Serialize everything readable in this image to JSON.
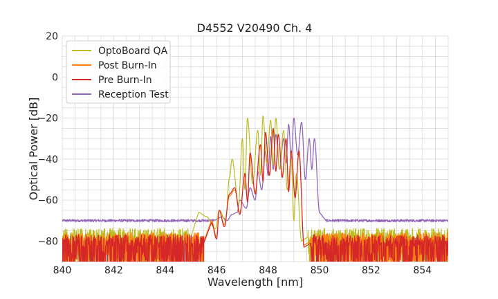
{
  "chart_data": {
    "type": "line",
    "title": "D4552 V20490 Ch. 4",
    "xlabel": "Wavelength [nm]",
    "ylabel": "Optical Power [dB]",
    "xlim": [
      840,
      855
    ],
    "ylim": [
      -90,
      20
    ],
    "x_ticks": [
      840,
      842,
      844,
      846,
      848,
      850,
      852,
      854
    ],
    "x_tick_labels": [
      "840",
      "842",
      "844",
      "846",
      "848",
      "850",
      "852",
      "854"
    ],
    "y_ticks": [
      20,
      0,
      -20,
      -40,
      -60,
      -80
    ],
    "y_tick_labels": [
      "20",
      "0",
      "−20",
      "−40",
      "−60",
      "−80"
    ],
    "grid": true,
    "legend_position": "top-left",
    "series": [
      {
        "name": "OptoBoard QA",
        "color": "#bcbd22",
        "noise_floor": -78,
        "peaks": [
          [
            845.3,
            -66
          ],
          [
            845.6,
            -68
          ],
          [
            846.1,
            -65
          ],
          [
            846.5,
            -49
          ],
          [
            846.6,
            -40
          ],
          [
            847.0,
            -30
          ],
          [
            847.2,
            -20
          ],
          [
            847.6,
            -26
          ],
          [
            847.8,
            -19
          ],
          [
            848.1,
            -21
          ],
          [
            848.3,
            -20
          ],
          [
            848.6,
            -26
          ],
          [
            848.9,
            -40
          ],
          [
            849.1,
            -47
          ]
        ],
        "valleys": [
          [
            845.95,
            -74
          ],
          [
            846.35,
            -70
          ],
          [
            846.85,
            -62
          ],
          [
            847.1,
            -55
          ],
          [
            847.4,
            -52
          ],
          [
            847.7,
            -48
          ],
          [
            847.95,
            -42
          ],
          [
            848.2,
            -43
          ],
          [
            848.45,
            -45
          ],
          [
            848.75,
            -55
          ],
          [
            849.0,
            -70
          ],
          [
            849.3,
            -80
          ]
        ]
      },
      {
        "name": "Post Burn-In",
        "color": "#ff7f0e",
        "noise_floor": -80,
        "peaks": [
          [
            845.8,
            -70
          ],
          [
            846.1,
            -65
          ],
          [
            846.5,
            -58
          ],
          [
            846.7,
            -55
          ],
          [
            847.1,
            -48
          ],
          [
            847.3,
            -38
          ],
          [
            847.7,
            -33
          ],
          [
            847.9,
            -27
          ],
          [
            848.2,
            -26
          ],
          [
            848.4,
            -28
          ],
          [
            848.7,
            -30
          ],
          [
            848.9,
            -37
          ],
          [
            849.2,
            -37
          ]
        ],
        "valleys": [
          [
            846.0,
            -78
          ],
          [
            846.3,
            -72
          ],
          [
            846.9,
            -66
          ],
          [
            847.2,
            -60
          ],
          [
            847.5,
            -56
          ],
          [
            847.8,
            -50
          ],
          [
            848.05,
            -47
          ],
          [
            848.3,
            -45
          ],
          [
            848.55,
            -48
          ],
          [
            848.8,
            -55
          ],
          [
            849.05,
            -58
          ],
          [
            849.4,
            -82
          ]
        ]
      },
      {
        "name": "Pre Burn-In",
        "color": "#d62728",
        "noise_floor": -81,
        "peaks": [
          [
            845.8,
            -71
          ],
          [
            846.1,
            -65
          ],
          [
            846.5,
            -57
          ],
          [
            846.7,
            -54
          ],
          [
            847.1,
            -47
          ],
          [
            847.3,
            -37
          ],
          [
            847.7,
            -33
          ],
          [
            847.9,
            -27
          ],
          [
            848.2,
            -25
          ],
          [
            848.4,
            -28
          ],
          [
            848.7,
            -30
          ],
          [
            848.9,
            -36
          ],
          [
            849.2,
            -36
          ]
        ],
        "valleys": [
          [
            846.0,
            -79
          ],
          [
            846.3,
            -73
          ],
          [
            846.9,
            -67
          ],
          [
            847.2,
            -61
          ],
          [
            847.5,
            -57
          ],
          [
            847.8,
            -51
          ],
          [
            848.05,
            -48
          ],
          [
            848.3,
            -46
          ],
          [
            848.55,
            -49
          ],
          [
            848.8,
            -56
          ],
          [
            849.05,
            -59
          ],
          [
            849.4,
            -83
          ]
        ]
      },
      {
        "name": "Reception Test",
        "color": "#9467bd",
        "noise_floor": -70,
        "peaks": [
          [
            846.2,
            -68
          ],
          [
            846.6,
            -67
          ],
          [
            846.9,
            -60
          ],
          [
            847.3,
            -54
          ],
          [
            847.6,
            -46
          ],
          [
            847.9,
            -36
          ],
          [
            848.1,
            -29
          ],
          [
            848.3,
            -28
          ],
          [
            848.6,
            -30
          ],
          [
            848.8,
            -23
          ],
          [
            849.0,
            -20
          ],
          [
            849.3,
            -22
          ],
          [
            849.6,
            -30
          ],
          [
            849.8,
            -30
          ]
        ],
        "valleys": [
          [
            846.4,
            -70
          ],
          [
            846.8,
            -66
          ],
          [
            847.15,
            -64
          ],
          [
            847.5,
            -60
          ],
          [
            847.75,
            -55
          ],
          [
            848.0,
            -48
          ],
          [
            848.2,
            -45
          ],
          [
            848.45,
            -45
          ],
          [
            848.7,
            -42
          ],
          [
            848.9,
            -40
          ],
          [
            849.15,
            -38
          ],
          [
            849.45,
            -50
          ],
          [
            849.7,
            -45
          ],
          [
            850.0,
            -66
          ]
        ]
      }
    ]
  }
}
